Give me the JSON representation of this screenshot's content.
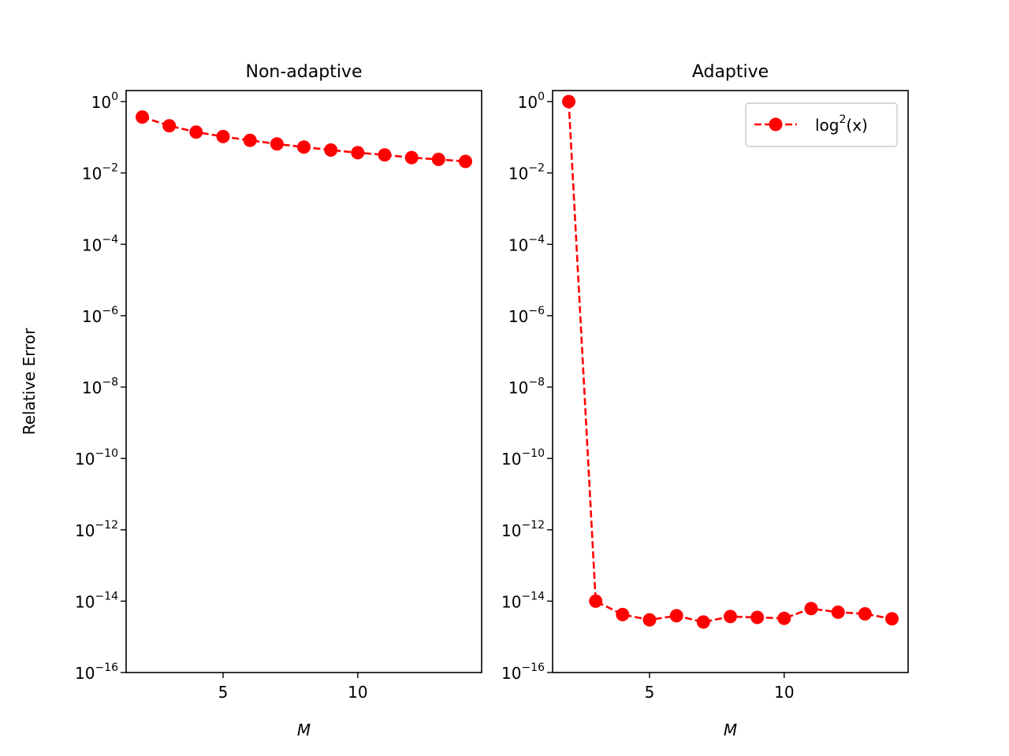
{
  "colors": {
    "series": "#ff0000",
    "axes": "#000000",
    "background": "#ffffff",
    "legend_border": "#cccccc"
  },
  "chart_data": [
    {
      "type": "line",
      "title": "Non-adaptive",
      "xlabel": "M",
      "ylabel": "Relative Error",
      "yscale": "log",
      "xlim": [
        1.4,
        14.6
      ],
      "ylim": [
        1e-16,
        2
      ],
      "xticks": [
        5,
        10
      ],
      "xtick_labels": [
        "5",
        "10"
      ],
      "ytick_exponents": [
        0,
        -2,
        -4,
        -6,
        -8,
        -10,
        -12,
        -14,
        -16
      ],
      "ytick_base": "10",
      "grid": false,
      "legend": null,
      "marker": "circle",
      "linestyle": "dashed",
      "series": [
        {
          "name": "",
          "color": "#ff0000",
          "x": [
            2,
            3,
            4,
            5,
            6,
            7,
            8,
            9,
            10,
            11,
            12,
            13,
            14
          ],
          "y": [
            0.37,
            0.21,
            0.14,
            0.105,
            0.082,
            0.065,
            0.053,
            0.044,
            0.037,
            0.032,
            0.027,
            0.024,
            0.021
          ]
        }
      ]
    },
    {
      "type": "line",
      "title": "Adaptive",
      "xlabel": "M",
      "ylabel": "",
      "yscale": "log",
      "xlim": [
        1.4,
        14.6
      ],
      "ylim": [
        1e-16,
        2
      ],
      "xticks": [
        5,
        10
      ],
      "xtick_labels": [
        "5",
        "10"
      ],
      "ytick_exponents": [
        0,
        -2,
        -4,
        -6,
        -8,
        -10,
        -12,
        -14,
        -16
      ],
      "ytick_base": "10",
      "grid": false,
      "legend": {
        "position": "upper right",
        "label_base": "log",
        "label_sup": "2",
        "label_arg": "(x)"
      },
      "marker": "circle",
      "linestyle": "dashed",
      "series": [
        {
          "name": "log²(x)",
          "color": "#ff0000",
          "x": [
            2,
            3,
            4,
            5,
            6,
            7,
            8,
            9,
            10,
            11,
            12,
            13,
            14
          ],
          "y": [
            1.0,
            1e-14,
            4.2e-15,
            3e-15,
            3.9e-15,
            2.6e-15,
            3.7e-15,
            3.5e-15,
            3.3e-15,
            6.2e-15,
            4.9e-15,
            4.4e-15,
            3.2e-15
          ]
        }
      ]
    }
  ]
}
